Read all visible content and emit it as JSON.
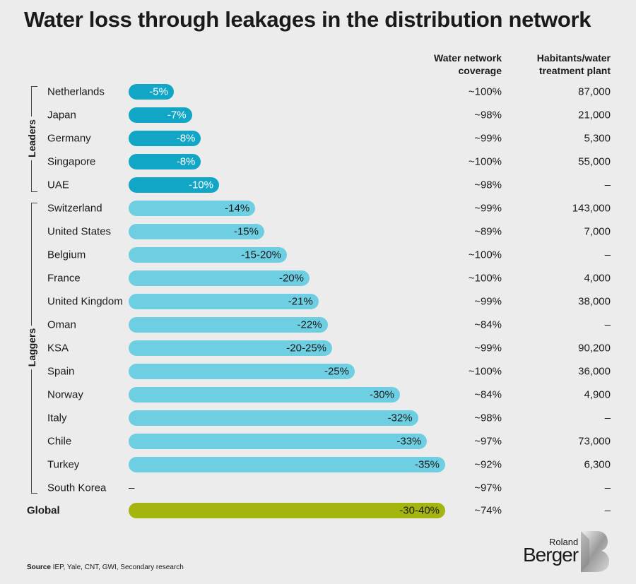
{
  "title": "Water loss through leakages in the distribution network",
  "columns": {
    "coverage_line1": "Water network",
    "coverage_line2": "coverage",
    "habitants_line1": "Habitants/water",
    "habitants_line2": "treatment plant"
  },
  "groups": {
    "leaders": "Leaders",
    "laggers": "Laggers"
  },
  "colors": {
    "leaders": "#12a6c6",
    "laggers": "#6fcfe2",
    "global": "#a4b50f",
    "leader_text": "#ffffff",
    "other_text": "#1a1a1a"
  },
  "chart_data": {
    "type": "bar",
    "title": "Water loss through leakages in the distribution network",
    "xlim": [
      0,
      40
    ],
    "rows": [
      {
        "country": "Netherlands",
        "group": "leaders",
        "loss_label": "-5%",
        "loss_value": 5,
        "coverage": "~100%",
        "habitants": "87,000"
      },
      {
        "country": "Japan",
        "group": "leaders",
        "loss_label": "-7%",
        "loss_value": 7,
        "coverage": "~98%",
        "habitants": "21,000"
      },
      {
        "country": "Germany",
        "group": "leaders",
        "loss_label": "-8%",
        "loss_value": 8,
        "coverage": "~99%",
        "habitants": "5,300"
      },
      {
        "country": "Singapore",
        "group": "leaders",
        "loss_label": "-8%",
        "loss_value": 8,
        "coverage": "~100%",
        "habitants": "55,000"
      },
      {
        "country": "UAE",
        "group": "leaders",
        "loss_label": "-10%",
        "loss_value": 10,
        "coverage": "~98%",
        "habitants": "–"
      },
      {
        "country": "Switzerland",
        "group": "laggers",
        "loss_label": "-14%",
        "loss_value": 14,
        "coverage": "~99%",
        "habitants": "143,000"
      },
      {
        "country": "United States",
        "group": "laggers",
        "loss_label": "-15%",
        "loss_value": 15,
        "coverage": "~89%",
        "habitants": "7,000"
      },
      {
        "country": "Belgium",
        "group": "laggers",
        "loss_label": "-15-20%",
        "loss_value": 17.5,
        "coverage": "~100%",
        "habitants": "–"
      },
      {
        "country": "France",
        "group": "laggers",
        "loss_label": "-20%",
        "loss_value": 20,
        "coverage": "~100%",
        "habitants": "4,000"
      },
      {
        "country": "United Kingdom",
        "group": "laggers",
        "loss_label": "-21%",
        "loss_value": 21,
        "coverage": "~99%",
        "habitants": "38,000"
      },
      {
        "country": "Oman",
        "group": "laggers",
        "loss_label": "-22%",
        "loss_value": 22,
        "coverage": "~84%",
        "habitants": "–"
      },
      {
        "country": "KSA",
        "group": "laggers",
        "loss_label": "-20-25%",
        "loss_value": 22.5,
        "coverage": "~99%",
        "habitants": "90,200"
      },
      {
        "country": "Spain",
        "group": "laggers",
        "loss_label": "-25%",
        "loss_value": 25,
        "coverage": "~100%",
        "habitants": "36,000"
      },
      {
        "country": "Norway",
        "group": "laggers",
        "loss_label": "-30%",
        "loss_value": 30,
        "coverage": "~84%",
        "habitants": "4,900"
      },
      {
        "country": "Italy",
        "group": "laggers",
        "loss_label": "-32%",
        "loss_value": 32,
        "coverage": "~98%",
        "habitants": "–"
      },
      {
        "country": "Chile",
        "group": "laggers",
        "loss_label": "-33%",
        "loss_value": 33,
        "coverage": "~97%",
        "habitants": "73,000"
      },
      {
        "country": "Turkey",
        "group": "laggers",
        "loss_label": "-35%",
        "loss_value": 35,
        "coverage": "~92%",
        "habitants": "6,300"
      },
      {
        "country": "South Korea",
        "group": "laggers",
        "loss_label": "–",
        "loss_value": null,
        "coverage": "~97%",
        "habitants": "–"
      },
      {
        "country": "Global",
        "group": "global",
        "loss_label": "-30-40%",
        "loss_value": 35,
        "coverage": "~74%",
        "habitants": "–"
      }
    ]
  },
  "source": {
    "label": "Source",
    "text": "IEP, Yale, CNT, GWI, Secondary research"
  },
  "logo": {
    "line1": "Roland",
    "line2": "Berger"
  }
}
